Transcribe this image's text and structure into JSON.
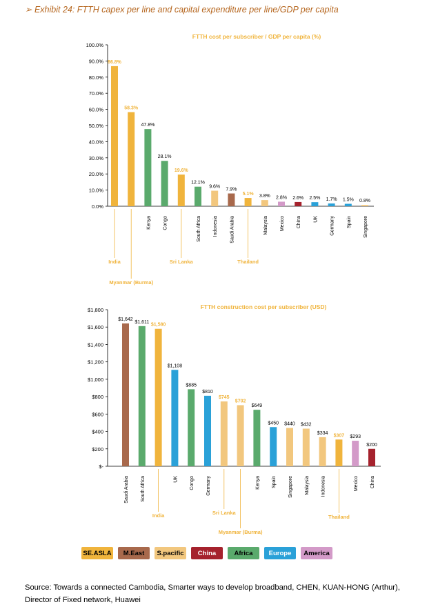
{
  "exhibit_title": "➢ Exhibit 24: FTTH capex per line and capital expenditure per line/GDP per capita",
  "colors": {
    "SE.ASLA": "#f0b43c",
    "M.East": "#a8694c",
    "S.pacific": "#f2c77e",
    "China": "#a5222d",
    "Africa": "#5aaa6c",
    "Europe": "#2aa1d8",
    "America": "#d39ac8",
    "title": "#f0b43c",
    "annotation": "#f0b43c"
  },
  "legend": [
    {
      "label": "SE.ASLA",
      "group": "SE.ASLA",
      "text_color": "#000000"
    },
    {
      "label": "M.East",
      "group": "M.East",
      "text_color": "#000000"
    },
    {
      "label": "S.pacific",
      "group": "S.pacific",
      "text_color": "#000000"
    },
    {
      "label": "China",
      "group": "China",
      "text_color": "#ffffff"
    },
    {
      "label": "Africa",
      "group": "Africa",
      "text_color": "#000000"
    },
    {
      "label": "Europe",
      "group": "Europe",
      "text_color": "#ffffff"
    },
    {
      "label": "America",
      "group": "America",
      "text_color": "#000000"
    }
  ],
  "source": "Source: Towards a connected Cambodia, Smarter ways to develop broadband, CHEN, KUAN-HONG (Arthur), Director of Fixed network, Huawei",
  "chart_data": [
    {
      "type": "bar",
      "title": "FTTH cost per subscriber / GDP per capita (%)",
      "ylim": [
        0,
        100
      ],
      "yticks": [
        "0.0%",
        "10.0%",
        "20.0%",
        "30.0%",
        "40.0%",
        "50.0%",
        "60.0%",
        "70.0%",
        "80.0%",
        "90.0%",
        "100.0%"
      ],
      "categories": [
        "India",
        "Myanmar (Burma)",
        "Kenya",
        "Congo",
        "Sri Lanka",
        "South Africa",
        "Indonesia",
        "Saudi Arabia",
        "Thailand",
        "Malaysia",
        "Mexico",
        "China",
        "UK",
        "Germany",
        "Spain",
        "Singapore"
      ],
      "values": [
        86.8,
        58.3,
        47.8,
        28.1,
        19.6,
        12.1,
        9.6,
        7.9,
        5.1,
        3.8,
        2.8,
        2.6,
        2.5,
        1.7,
        1.5,
        0.8
      ],
      "value_labels": [
        "86.8%",
        "58.3%",
        "47.8%",
        "28.1%",
        "19.6%",
        "12.1%",
        "9.6%",
        "7.9%",
        "5.1%",
        "3.8%",
        "2.8%",
        "2.6%",
        "2.5%",
        "1.7%",
        "1.5%",
        "0.8%"
      ],
      "groups": [
        "SE.ASLA",
        "SE.ASLA",
        "Africa",
        "Africa",
        "SE.ASLA",
        "Africa",
        "S.pacific",
        "M.East",
        "SE.ASLA",
        "S.pacific",
        "America",
        "China",
        "Europe",
        "Europe",
        "Europe",
        "S.pacific"
      ],
      "highlighted": [
        true,
        true,
        false,
        false,
        true,
        false,
        false,
        false,
        true,
        false,
        false,
        false,
        false,
        false,
        false,
        false
      ],
      "annotated": [
        "India",
        "Myanmar (Burma)",
        "Sri Lanka",
        "Thailand"
      ]
    },
    {
      "type": "bar",
      "title": "FTTH construction cost per subscriber  (USD)",
      "ylim": [
        0,
        1800
      ],
      "yticks": [
        "$-",
        "$200",
        "$400",
        "$600",
        "$800",
        "$1,000",
        "$1,200",
        "$1,400",
        "$1,600",
        "$1,800"
      ],
      "categories": [
        "Saudi Arabia",
        "South Africa",
        "India",
        "UK",
        "Congo",
        "Germany",
        "Sri Lanka",
        "Myanmar (Burma)",
        "Kenya",
        "Spain",
        "Singapore",
        "Malaysia",
        "Indonesia",
        "Thailand",
        "Mexico",
        "China"
      ],
      "values": [
        1642,
        1611,
        1580,
        1108,
        885,
        810,
        745,
        702,
        649,
        450,
        440,
        432,
        334,
        307,
        293,
        200
      ],
      "value_labels": [
        "$1,642",
        "$1,611",
        "$1,580",
        "$1,108",
        "$885",
        "$810",
        "$745",
        "$702",
        "$649",
        "$450",
        "$440",
        "$432",
        "$334",
        "$307",
        "$293",
        "$200"
      ],
      "groups": [
        "M.East",
        "Africa",
        "SE.ASLA",
        "Europe",
        "Africa",
        "Europe",
        "S.pacific",
        "S.pacific",
        "Africa",
        "Europe",
        "S.pacific",
        "S.pacific",
        "S.pacific",
        "SE.ASLA",
        "America",
        "China"
      ],
      "highlighted": [
        false,
        false,
        true,
        false,
        false,
        false,
        true,
        true,
        false,
        false,
        false,
        false,
        false,
        true,
        false,
        false
      ],
      "annotated": [
        "India",
        "Sri Lanka",
        "Myanmar (Burma)",
        "Thailand"
      ]
    }
  ]
}
